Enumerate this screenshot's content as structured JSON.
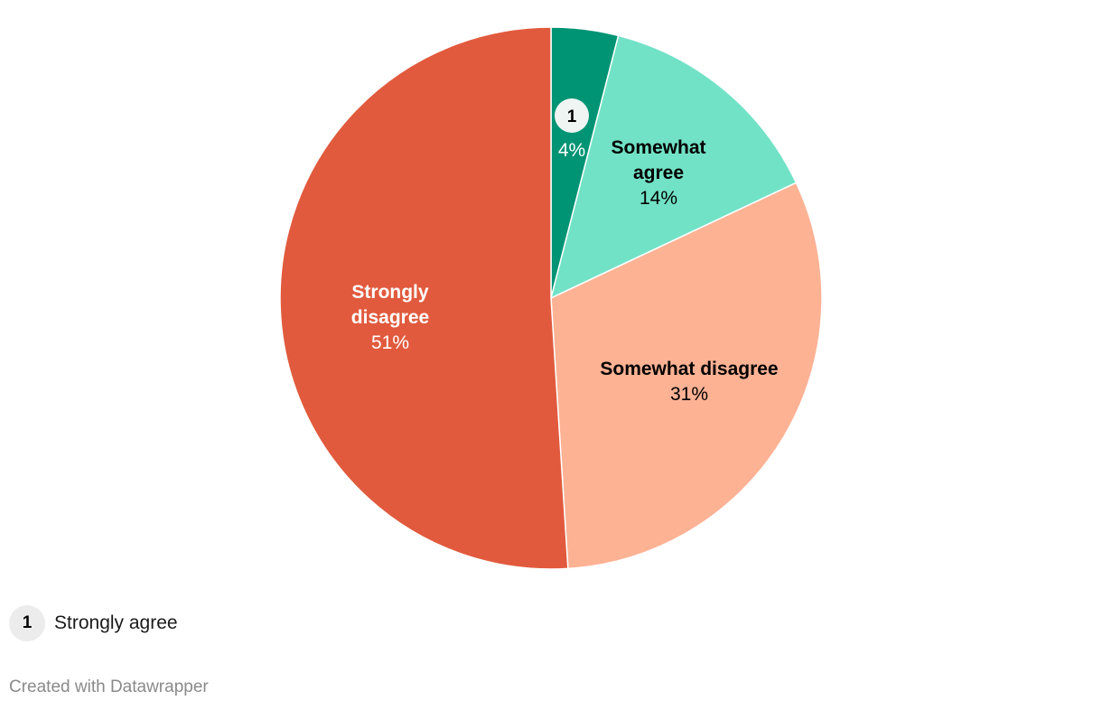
{
  "chart_data": {
    "type": "pie",
    "slices": [
      {
        "label": "Strongly agree",
        "value": 4,
        "display": "4%",
        "color": "#009474",
        "text_color": "#ffffff",
        "badge": "1"
      },
      {
        "label": "Somewhat agree",
        "value": 14,
        "display": "14%",
        "color": "#72e2c6",
        "text_color": "#000000"
      },
      {
        "label": "Somewhat disagree",
        "value": 31,
        "display": "31%",
        "color": "#fdb294",
        "text_color": "#000000"
      },
      {
        "label": "Strongly disagree",
        "value": 51,
        "display": "51%",
        "color": "#e15a3d",
        "text_color": "#ffffff"
      }
    ]
  },
  "legend": {
    "badge": "1",
    "label": "Strongly agree"
  },
  "footer": "Created with Datawrapper"
}
